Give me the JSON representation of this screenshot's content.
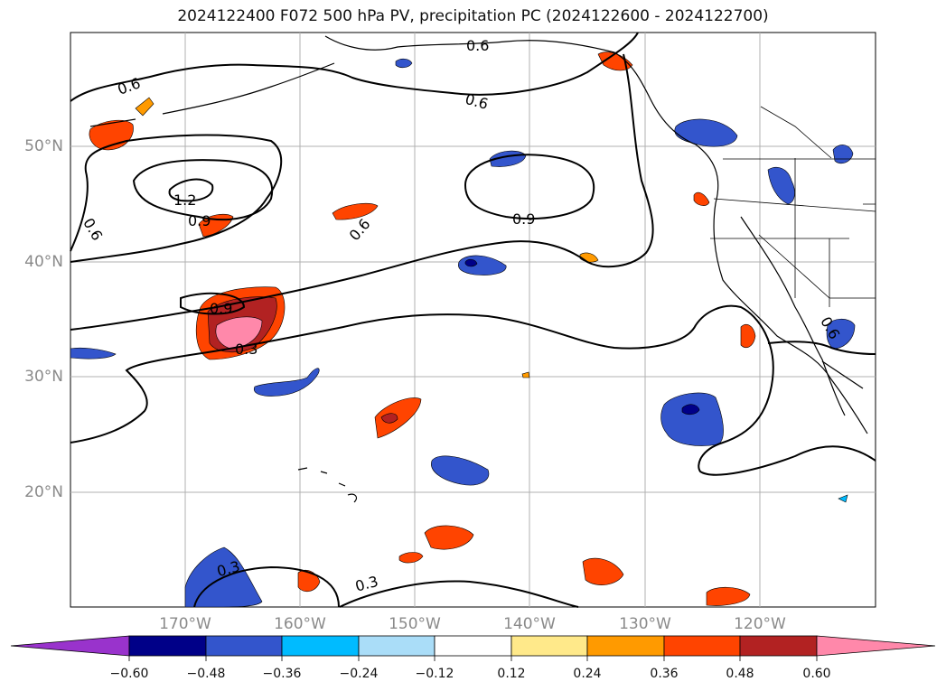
{
  "title": "2024122400 F072 500 hPa PV, precipitation PC (2024122600 - 2024122700)",
  "lat_labels": [
    "50°N",
    "40°N",
    "30°N",
    "20°N"
  ],
  "lon_labels": [
    "170°W",
    "160°W",
    "150°W",
    "140°W",
    "130°W",
    "120°W"
  ],
  "contour_labels": [
    "0.6",
    "0.6",
    "0.6",
    "0.6",
    "0.6",
    "1.2",
    "0.9",
    "0.9",
    "0.9",
    "0.3",
    "0.3",
    "0.3",
    "0.6"
  ],
  "colorbar": {
    "tick_labels": [
      "−0.60",
      "−0.48",
      "−0.36",
      "−0.24",
      "−0.12",
      "0.12",
      "0.24",
      "0.36",
      "0.48",
      "0.60"
    ],
    "colors": [
      "#9933cc",
      "#000088",
      "#3355cc",
      "#00bbff",
      "#aaddf8",
      "#ffffff",
      "#ffe98a",
      "#ff9a00",
      "#ff4400",
      "#b22222",
      "#ff88aa"
    ]
  },
  "map": {
    "land_color": "#ffffff",
    "grid": true,
    "contour_color": "#000000"
  }
}
